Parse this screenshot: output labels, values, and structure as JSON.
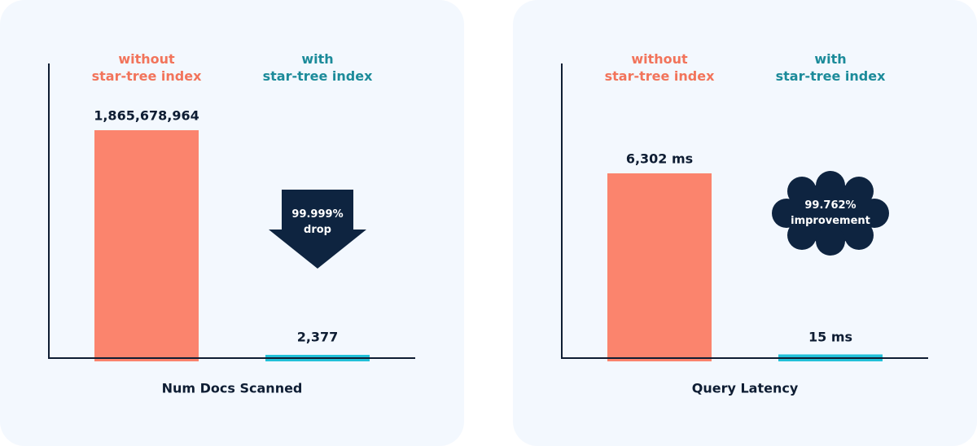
{
  "chart_data": [
    {
      "type": "bar",
      "title": "Num Docs Scanned",
      "categories": [
        "without\nstar-tree index",
        "with\nstar-tree index"
      ],
      "values": [
        1865678964,
        2377
      ],
      "value_labels": [
        "1,865,678,964",
        "2,377"
      ],
      "colors": [
        "#fb846d",
        "#22c1d9"
      ],
      "annotation": "99.999%\ndrop"
    },
    {
      "type": "bar",
      "title": "Query Latency",
      "categories": [
        "without\nstar-tree index",
        "with\nstar-tree index"
      ],
      "values": [
        6302,
        15
      ],
      "value_labels": [
        "6,302 ms",
        "15 ms"
      ],
      "colors": [
        "#fb846d",
        "#22c1d9"
      ],
      "annotation": "99.762%\nimprovement"
    }
  ]
}
